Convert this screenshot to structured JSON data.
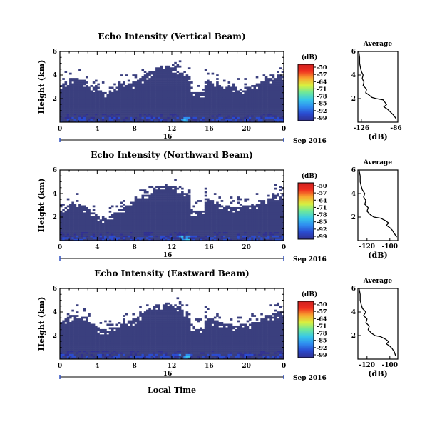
{
  "chart_data": [
    {
      "type": "heatmap",
      "title": "Echo Intensity (Vertical Beam)",
      "ylabel": "Height (km)",
      "xlabel": "",
      "x_ticks": [
        "0",
        "4",
        "8",
        "12",
        "16",
        "20",
        "0"
      ],
      "y_ticks": [
        "2",
        "4",
        "6"
      ],
      "xlim": [
        0,
        24
      ],
      "ylim": [
        0,
        6
      ],
      "date_axis": {
        "tick": "16",
        "label": "Sep 2016"
      },
      "colorbar": {
        "unit": "(dB)",
        "ticks": [
          "-50",
          "-57",
          "-64",
          "-71",
          "-78",
          "-85",
          "-92",
          "-99"
        ],
        "range": [
          -99,
          -50
        ]
      },
      "profile": {
        "title": "Average",
        "xlabel": "(dB)",
        "x_ticks": [
          "-126",
          "-86"
        ],
        "y_ticks": [
          "2",
          "4",
          "6"
        ],
        "xlim": [
          -130,
          -84
        ],
        "ylim": [
          0,
          6
        ],
        "points": [
          [
            -129,
            6.0
          ],
          [
            -128,
            5.5
          ],
          [
            -128,
            5.0
          ],
          [
            -127,
            4.6
          ],
          [
            -126,
            4.3
          ],
          [
            -124,
            4.0
          ],
          [
            -125,
            3.7
          ],
          [
            -123,
            3.4
          ],
          [
            -124,
            3.1
          ],
          [
            -120,
            2.8
          ],
          [
            -121,
            2.5
          ],
          [
            -117,
            2.3
          ],
          [
            -114,
            2.1
          ],
          [
            -109,
            2.0
          ],
          [
            -101,
            1.9
          ],
          [
            -99,
            1.7
          ],
          [
            -97,
            1.5
          ],
          [
            -100,
            1.3
          ],
          [
            -96,
            1.1
          ],
          [
            -93,
            0.9
          ],
          [
            -89,
            0.6
          ],
          [
            -86,
            0.3
          ]
        ]
      }
    },
    {
      "type": "heatmap",
      "title": "Echo Intensity (Northward Beam)",
      "ylabel": "Height (km)",
      "xlabel": "",
      "x_ticks": [
        "0",
        "4",
        "8",
        "12",
        "16",
        "20",
        "0"
      ],
      "y_ticks": [
        "2",
        "4",
        "6"
      ],
      "xlim": [
        0,
        24
      ],
      "ylim": [
        0,
        6
      ],
      "date_axis": {
        "tick": "16",
        "label": "Sep 2016"
      },
      "colorbar": {
        "unit": "(dB)",
        "ticks": [
          "-50",
          "-57",
          "-64",
          "-71",
          "-78",
          "-85",
          "-92",
          "-99"
        ],
        "range": [
          -99,
          -50
        ]
      },
      "profile": {
        "title": "Average",
        "xlabel": "(dB)",
        "x_ticks": [
          "-120",
          "-100"
        ],
        "y_ticks": [
          "2",
          "4",
          "6"
        ],
        "xlim": [
          -128,
          -93
        ],
        "ylim": [
          0,
          6
        ],
        "points": [
          [
            -127,
            6.0
          ],
          [
            -126,
            5.5
          ],
          [
            -126,
            5.0
          ],
          [
            -125,
            4.6
          ],
          [
            -124,
            4.3
          ],
          [
            -122,
            4.0
          ],
          [
            -123,
            3.7
          ],
          [
            -121,
            3.4
          ],
          [
            -122,
            3.1
          ],
          [
            -119,
            2.8
          ],
          [
            -120,
            2.5
          ],
          [
            -117,
            2.2
          ],
          [
            -114,
            2.0
          ],
          [
            -108,
            1.9
          ],
          [
            -104,
            1.7
          ],
          [
            -101,
            1.5
          ],
          [
            -103,
            1.3
          ],
          [
            -100,
            1.1
          ],
          [
            -98,
            0.9
          ],
          [
            -96,
            0.6
          ],
          [
            -94,
            0.3
          ]
        ]
      }
    },
    {
      "type": "heatmap",
      "title": "Echo Intensity (Eastward Beam)",
      "ylabel": "Height (km)",
      "xlabel": "Local Time",
      "x_ticks": [
        "0",
        "4",
        "8",
        "12",
        "16",
        "20",
        "0"
      ],
      "y_ticks": [
        "2",
        "4",
        "6"
      ],
      "xlim": [
        0,
        24
      ],
      "ylim": [
        0,
        6
      ],
      "date_axis": {
        "tick": "16",
        "label": "Sep 2016"
      },
      "colorbar": {
        "unit": "(dB)",
        "ticks": [
          "-50",
          "-57",
          "-64",
          "-71",
          "-78",
          "-85",
          "-92",
          "-99"
        ],
        "range": [
          -99,
          -50
        ]
      },
      "profile": {
        "title": "Average",
        "xlabel": "(dB)",
        "x_ticks": [
          "-120",
          "-100"
        ],
        "y_ticks": [
          "2",
          "4",
          "6"
        ],
        "xlim": [
          -128,
          -93
        ],
        "ylim": [
          0,
          6
        ],
        "points": [
          [
            -127,
            6.0
          ],
          [
            -126,
            5.5
          ],
          [
            -126,
            5.0
          ],
          [
            -125,
            4.6
          ],
          [
            -124,
            4.3
          ],
          [
            -121,
            4.0
          ],
          [
            -123,
            3.7
          ],
          [
            -120,
            3.4
          ],
          [
            -121,
            3.1
          ],
          [
            -118,
            2.8
          ],
          [
            -119,
            2.5
          ],
          [
            -116,
            2.2
          ],
          [
            -113,
            2.0
          ],
          [
            -108,
            1.9
          ],
          [
            -104,
            1.7
          ],
          [
            -101,
            1.5
          ],
          [
            -103,
            1.3
          ],
          [
            -100,
            1.1
          ],
          [
            -98,
            0.9
          ],
          [
            -96,
            0.6
          ],
          [
            -95,
            0.3
          ]
        ]
      }
    }
  ],
  "colors": {
    "background_echo": "#3a3f7e",
    "colormap": [
      "#303090",
      "#2a4bd0",
      "#2f8ef0",
      "#38c8e8",
      "#6ee89a",
      "#d8f040",
      "#f8a830",
      "#f03020",
      "#d02020"
    ]
  }
}
